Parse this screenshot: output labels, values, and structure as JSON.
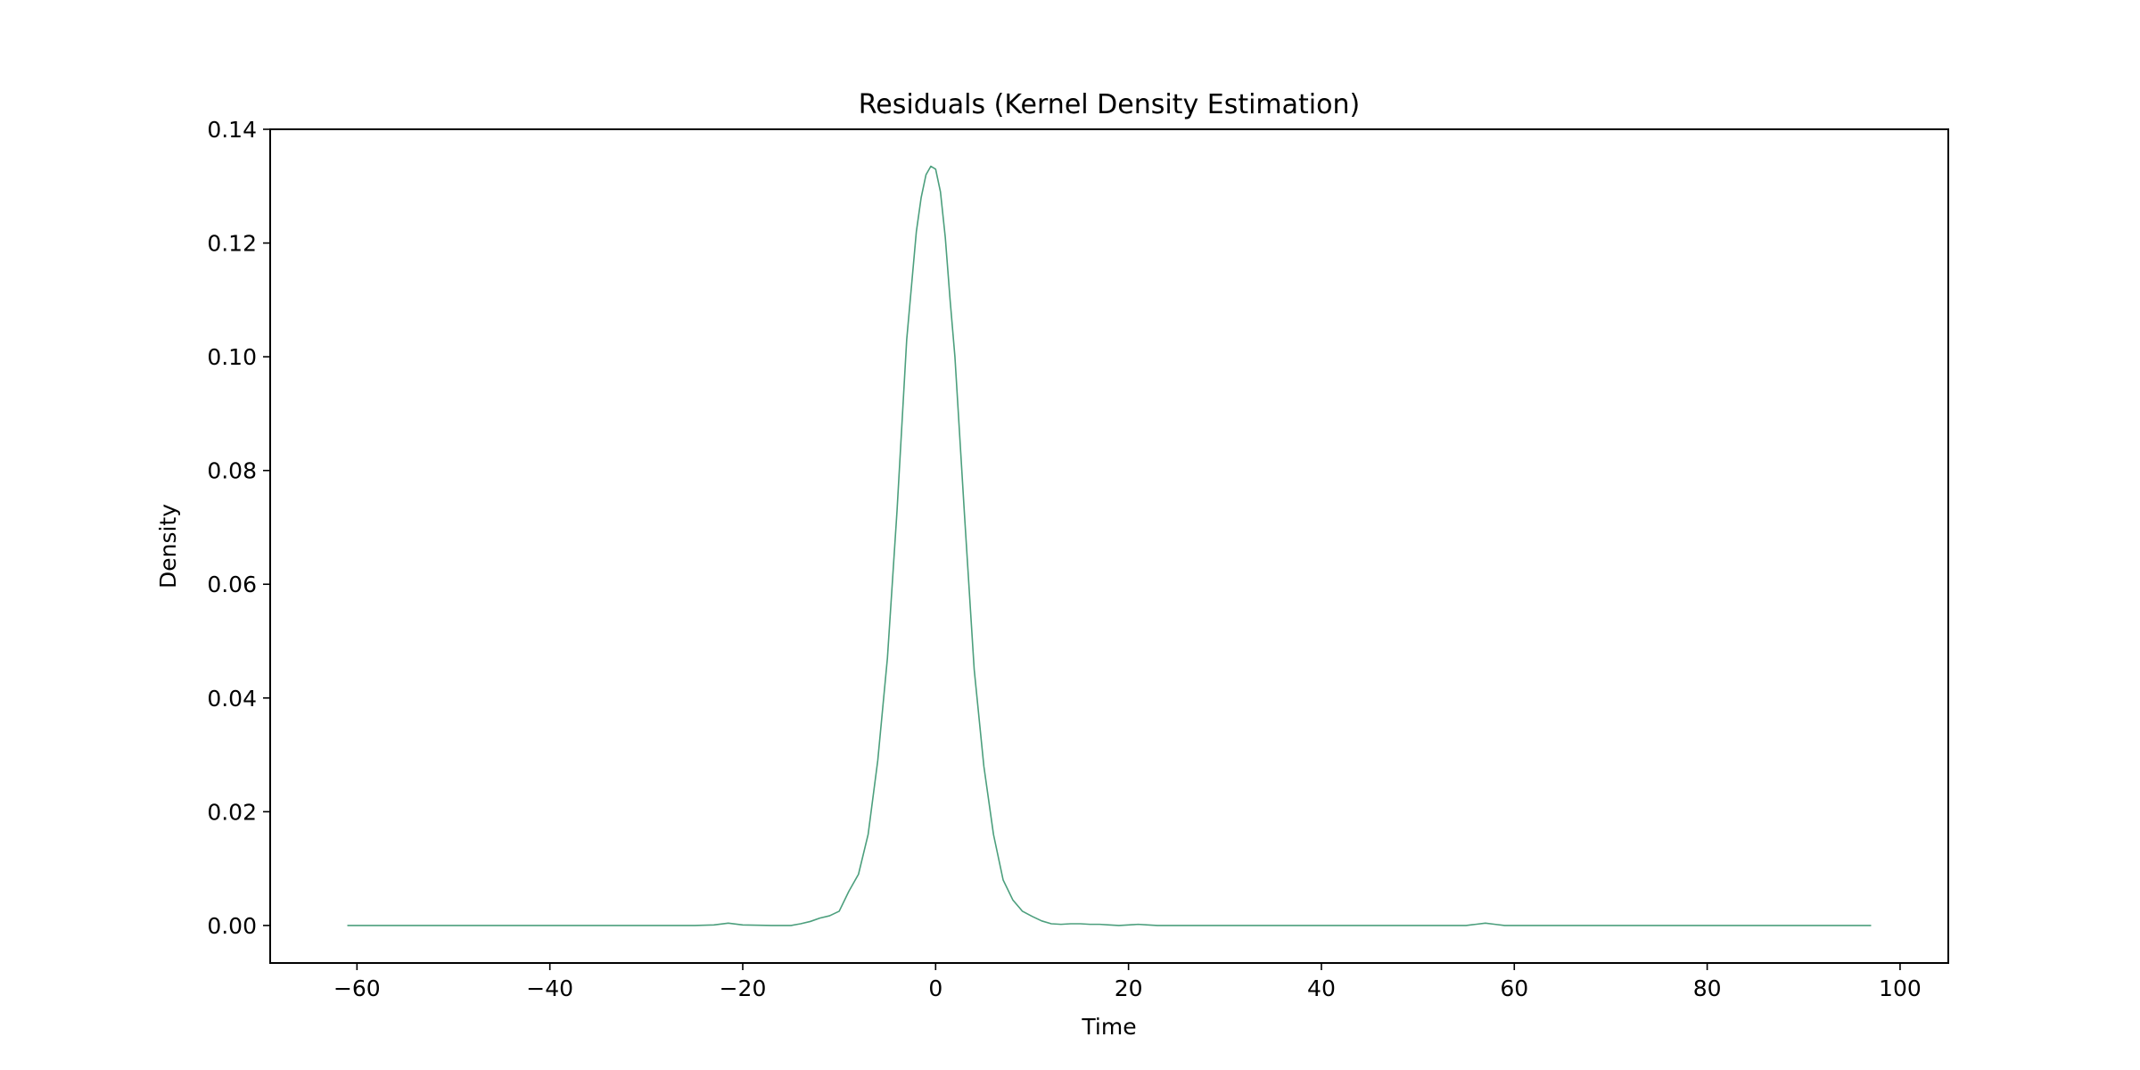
{
  "chart_data": {
    "type": "line",
    "title": "Residuals (Kernel Density Estimation)",
    "xlabel": "Time",
    "ylabel": "Density",
    "xlim": [
      -69,
      105
    ],
    "ylim": [
      -0.0066,
      0.14
    ],
    "xticks": [
      -60,
      -40,
      -20,
      0,
      20,
      40,
      60,
      80,
      100
    ],
    "xtick_labels": [
      "−60",
      "−40",
      "−20",
      "0",
      "20",
      "40",
      "60",
      "80",
      "100"
    ],
    "yticks": [
      0.0,
      0.02,
      0.04,
      0.06,
      0.08,
      0.1,
      0.12,
      0.14
    ],
    "ytick_labels": [
      "0.00",
      "0.02",
      "0.04",
      "0.06",
      "0.08",
      "0.10",
      "0.12",
      "0.14"
    ],
    "grid": false,
    "legend": "none",
    "series": [
      {
        "color": "#4c9f7d",
        "x": [
          -61,
          -40,
          -30,
          -25,
          -23,
          -21.5,
          -20,
          -17,
          -15,
          -14,
          -13,
          -12,
          -11,
          -10,
          -9,
          -8,
          -7,
          -6,
          -5,
          -4,
          -3,
          -2,
          -1.5,
          -1,
          -0.5,
          0,
          0.5,
          1,
          1.5,
          2,
          3,
          4,
          5,
          6,
          7,
          8,
          9,
          10,
          11,
          12,
          13,
          14,
          15,
          16,
          17,
          18,
          19,
          20,
          21,
          22,
          23,
          30,
          40,
          50,
          55,
          56,
          57,
          58,
          59,
          60,
          70,
          80,
          90,
          97
        ],
        "y": [
          0.0,
          0.0,
          0.0,
          0.0,
          0.0001,
          0.0004,
          0.0001,
          0.0,
          0.0,
          0.0003,
          0.0007,
          0.0013,
          0.0017,
          0.0025,
          0.006,
          0.009,
          0.016,
          0.029,
          0.047,
          0.073,
          0.103,
          0.122,
          0.128,
          0.132,
          0.1335,
          0.133,
          0.129,
          0.121,
          0.11,
          0.1,
          0.072,
          0.045,
          0.028,
          0.016,
          0.008,
          0.0045,
          0.0025,
          0.0016,
          0.0008,
          0.0003,
          0.0002,
          0.0003,
          0.0003,
          0.0002,
          0.0002,
          0.0001,
          0.0,
          0.0001,
          0.0002,
          0.0001,
          0.0,
          0.0,
          0.0,
          0.0,
          0.0,
          0.0002,
          0.0004,
          0.0002,
          0.0,
          0.0,
          0.0,
          0.0,
          0.0,
          0.0
        ]
      }
    ]
  }
}
